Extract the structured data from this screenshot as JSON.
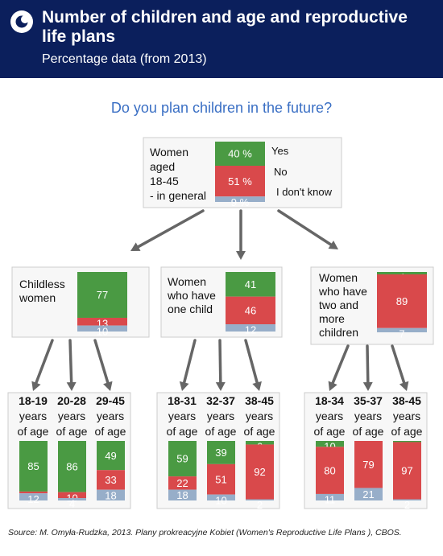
{
  "header": {
    "title": "Number of children and age and reproductive life plans",
    "subtitle": "Percentage data (from 2013)"
  },
  "colors": {
    "header_bg": "#0b1f5c",
    "question": "#3a6fc4",
    "yes": "#4a9a43",
    "no": "#d9494b",
    "dont_know": "#97aec9",
    "box_bg": "#f7f7f7",
    "arrow": "#666666"
  },
  "chart_data": {
    "type": "bar",
    "title": "Do you plan children in the future?",
    "legend": [
      "Yes",
      "No",
      "I don't know"
    ],
    "value_unit": "%",
    "root": {
      "label": "Women aged 18-45 - in general",
      "values": [
        40,
        51,
        9
      ]
    },
    "groups": [
      {
        "label": "Childless women",
        "values": [
          77,
          13,
          10
        ],
        "age_groups": [
          {
            "label": "18-19 years of age",
            "values": [
              85,
              3,
              12
            ]
          },
          {
            "label": "20-28 years of age",
            "values": [
              86,
              10,
              4
            ]
          },
          {
            "label": "29-45 years of age",
            "values": [
              49,
              33,
              18
            ]
          }
        ]
      },
      {
        "label": "Women who have one child",
        "values": [
          41,
          46,
          12
        ],
        "age_groups": [
          {
            "label": "18-31 years of age",
            "values": [
              59,
              22,
              18
            ]
          },
          {
            "label": "32-37 years of age",
            "values": [
              39,
              51,
              10
            ]
          },
          {
            "label": "38-45 years of age",
            "values": [
              6,
              92,
              2
            ]
          }
        ]
      },
      {
        "label": "Women who have two and more children",
        "values": [
          4,
          89,
          7
        ],
        "age_groups": [
          {
            "label": "18-34 years of age",
            "values": [
              10,
              80,
              11
            ]
          },
          {
            "label": "35-37 years of age",
            "values": [
              0,
              79,
              21
            ]
          },
          {
            "label": "38-45 years of age",
            "values": [
              2,
              97,
              2
            ]
          }
        ]
      }
    ]
  },
  "source": "Source: M. Omyła-Rudzka, 2013. Plany prokreacyjne Kobiet (Women's Reproductive Life  Plans ), CBOS."
}
